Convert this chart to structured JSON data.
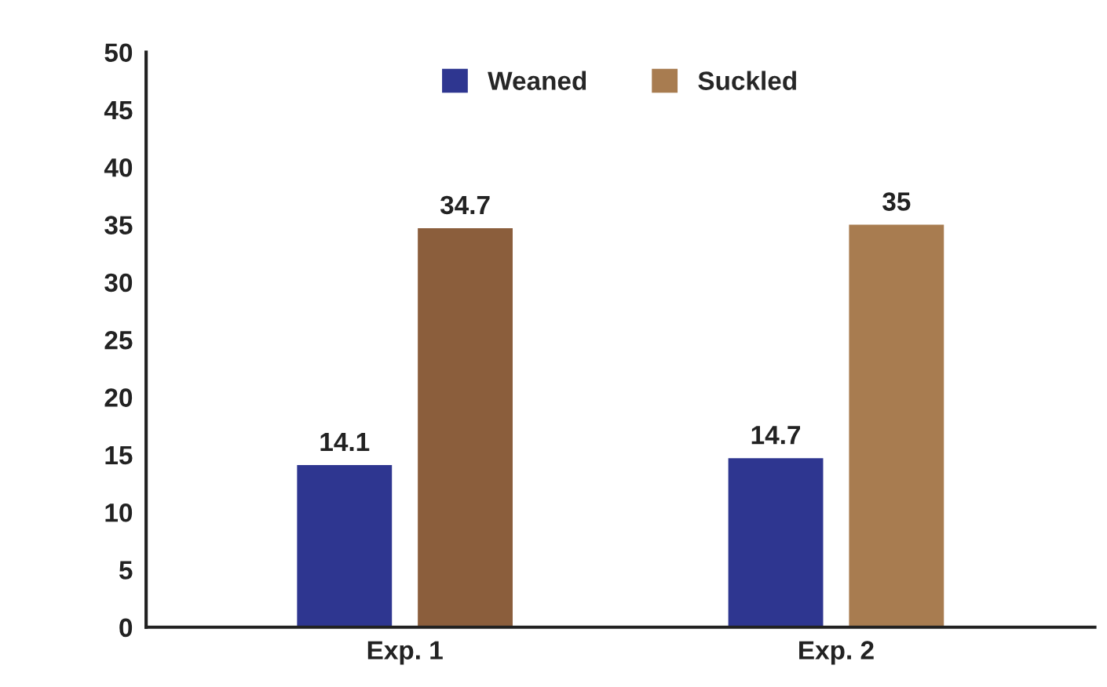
{
  "chart_data": {
    "type": "bar",
    "categories": [
      "Exp. 1",
      "Exp. 2"
    ],
    "series": [
      {
        "name": "Weaned",
        "color": "#2e3690",
        "values": [
          14.1,
          14.7
        ]
      },
      {
        "name": "Suckled",
        "color": "#a87c50",
        "colors": [
          "#8b5e3c",
          "#a87c50"
        ],
        "values": [
          34.7,
          35
        ]
      }
    ],
    "ylim": [
      0,
      50
    ],
    "yticks": [
      0,
      5,
      10,
      15,
      20,
      25,
      30,
      35,
      40,
      45,
      50
    ],
    "data_labels": true,
    "legend": "top",
    "grid": false
  }
}
